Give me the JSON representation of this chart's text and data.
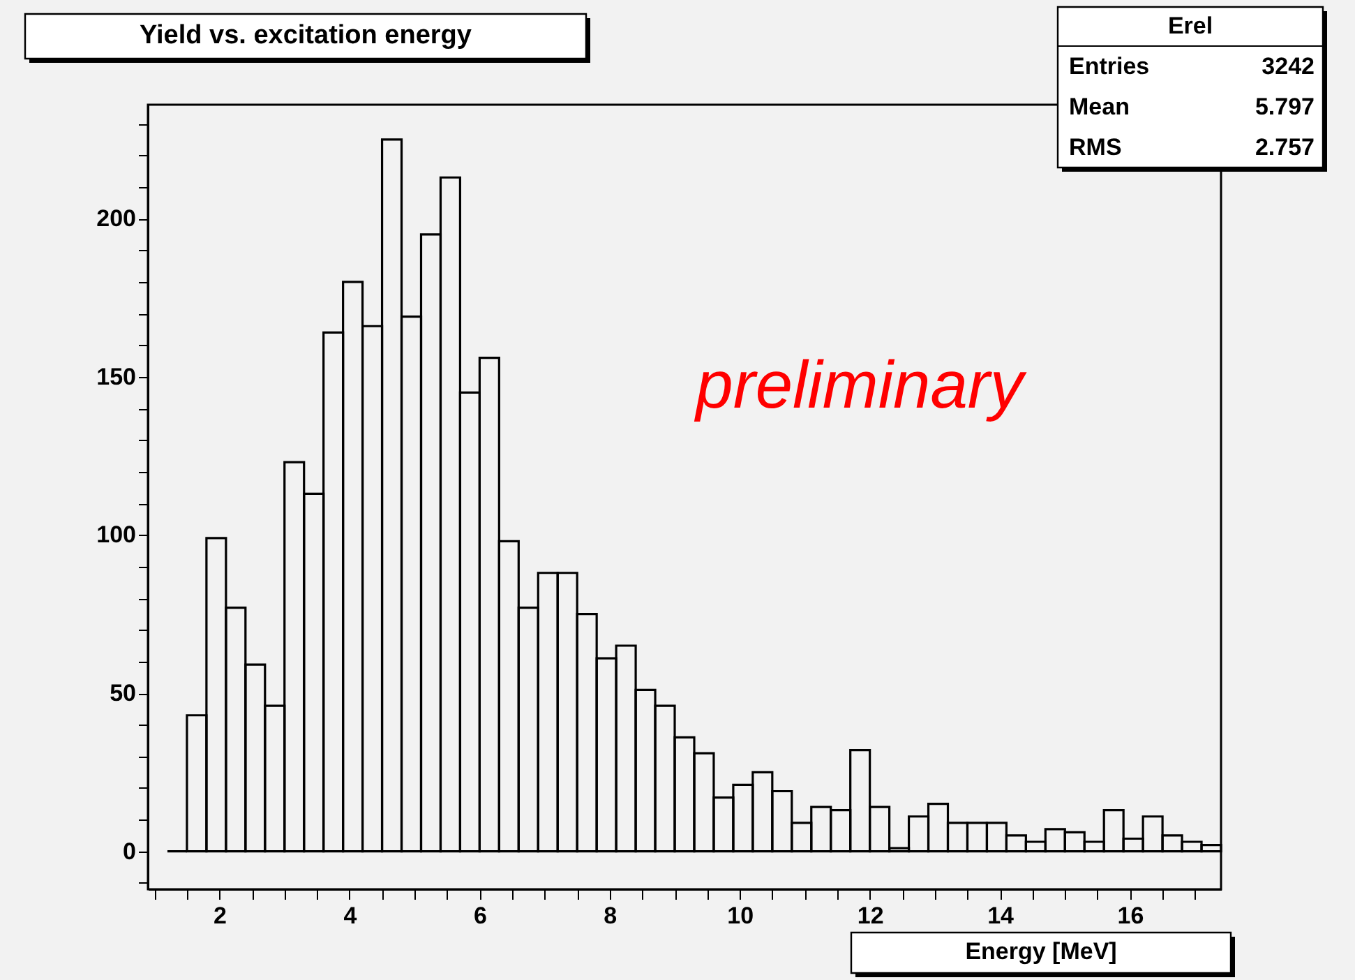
{
  "chart_data": {
    "type": "histogram",
    "title": "Yield vs. excitation energy",
    "xlabel": "Energy [MeV]",
    "bins": [
      1.2,
      1.5,
      1.8,
      2.1,
      2.4,
      2.7,
      3.0,
      3.3,
      3.6,
      3.9,
      4.2,
      4.5,
      4.8,
      5.1,
      5.4,
      5.7,
      6.0,
      6.3,
      6.6,
      6.9,
      7.2,
      7.5,
      7.8,
      8.1,
      8.4,
      8.7,
      9.0,
      9.3,
      9.6,
      9.9,
      10.2,
      10.5,
      10.8,
      11.1,
      11.4,
      11.7,
      12.0,
      12.3,
      12.6,
      12.9,
      13.2,
      13.5,
      13.8,
      14.1,
      14.4,
      14.7,
      15.0,
      15.3,
      15.6,
      15.9,
      16.2,
      16.5,
      16.8,
      17.1,
      17.4
    ],
    "values": [
      0,
      43,
      99,
      77,
      59,
      46,
      123,
      113,
      164,
      180,
      166,
      225,
      169,
      195,
      213,
      145,
      156,
      98,
      77,
      88,
      88,
      75,
      61,
      65,
      51,
      46,
      36,
      31,
      17,
      21,
      25,
      19,
      9,
      14,
      13,
      32,
      14,
      1,
      11,
      15,
      9,
      9,
      9,
      5,
      3,
      7,
      6,
      3,
      13,
      4,
      11,
      5,
      3,
      2
    ],
    "color": "#000000",
    "xlim": [
      0.9,
      17.4
    ],
    "xticks": [
      {
        "value": 1.0,
        "label": null
      },
      {
        "value": 1.5,
        "label": null
      },
      2,
      {
        "value": 2.5,
        "label": null
      },
      {
        "value": 3.0,
        "label": null
      },
      {
        "value": 3.5,
        "label": null
      },
      4,
      {
        "value": 4.5,
        "label": null
      },
      {
        "value": 5.0,
        "label": null
      },
      {
        "value": 5.5,
        "label": null
      },
      6,
      {
        "value": 6.5,
        "label": null
      },
      {
        "value": 7.0,
        "label": null
      },
      {
        "value": 7.5,
        "label": null
      },
      8,
      {
        "value": 8.5,
        "label": null
      },
      {
        "value": 9.0,
        "label": null
      },
      {
        "value": 9.5,
        "label": null
      },
      10,
      {
        "value": 10.5,
        "label": null
      },
      {
        "value": 11.0,
        "label": null
      },
      {
        "value": 11.5,
        "label": null
      },
      12,
      {
        "value": 12.5,
        "label": null
      },
      {
        "value": 13.0,
        "label": null
      },
      {
        "value": 13.5,
        "label": null
      },
      14,
      {
        "value": 14.5,
        "label": null
      },
      {
        "value": 15.0,
        "label": null
      },
      {
        "value": 15.5,
        "label": null
      },
      16,
      {
        "value": 16.5,
        "label": null
      },
      {
        "value": 17.0,
        "label": null
      }
    ],
    "ylim": [
      -12,
      236
    ],
    "yticks": [
      {
        "value": -10,
        "label": null
      },
      0,
      {
        "value": 10,
        "label": null
      },
      {
        "value": 20,
        "label": null
      },
      {
        "value": 30,
        "label": null
      },
      {
        "value": 40,
        "label": null
      },
      50,
      {
        "value": 60,
        "label": null
      },
      {
        "value": 70,
        "label": null
      },
      {
        "value": 80,
        "label": null
      },
      {
        "value": 90,
        "label": null
      },
      100,
      {
        "value": 110,
        "label": null
      },
      {
        "value": 120,
        "label": null
      },
      {
        "value": 130,
        "label": null
      },
      {
        "value": 140,
        "label": null
      },
      150,
      {
        "value": 160,
        "label": null
      },
      {
        "value": 170,
        "label": null
      },
      {
        "value": 180,
        "label": null
      },
      {
        "value": 190,
        "label": null
      },
      200,
      {
        "value": 210,
        "label": null
      },
      {
        "value": 220,
        "label": null
      },
      {
        "value": 230,
        "label": null
      }
    ],
    "grid": false,
    "annotations": [
      "preliminary",
      "Erel",
      "Entries",
      "3242",
      "Mean",
      "5.797",
      "RMS",
      "2.757"
    ]
  }
}
